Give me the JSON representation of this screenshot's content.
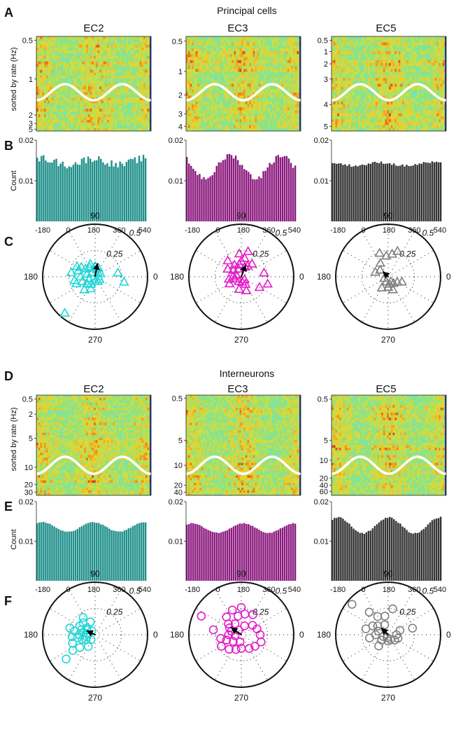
{
  "figure": {
    "sections": [
      {
        "key": "principal",
        "title": "Principal cells",
        "heat_panel_label": "A",
        "hist_panel_label": "B",
        "polar_panel_label": "C",
        "marker": "triangle"
      },
      {
        "key": "interneurons",
        "title": "Interneurons",
        "heat_panel_label": "D",
        "hist_panel_label": "E",
        "polar_panel_label": "F",
        "marker": "circle"
      }
    ],
    "columns": [
      "EC2",
      "EC3",
      "EC5"
    ],
    "column_colors": [
      "#1f8f8a",
      "#8b1a7e",
      "#333333"
    ],
    "polar_colors": [
      "#22d6d6",
      "#e21cc8",
      "#808080"
    ],
    "heatmap_ylabel": "sorted by rate (Hz)",
    "hist_ylabel": "Count",
    "polar_angle_labels": [
      "90",
      "180",
      "0",
      "270"
    ],
    "polar_radius_labels": [
      "0.5",
      "0.25"
    ]
  },
  "chart_data": [
    {
      "type": "heatmap",
      "panel": "A",
      "column": "EC2",
      "title": "EC2",
      "ylabel": "sorted by rate (Hz)",
      "yticks": [
        "0.5",
        "1",
        "2",
        "3",
        "5"
      ],
      "ytick_frac": [
        0.04,
        0.45,
        0.83,
        0.92,
        0.98
      ],
      "rows": 34,
      "bins": 60
    },
    {
      "type": "heatmap",
      "panel": "A",
      "column": "EC3",
      "title": "EC3",
      "yticks": [
        "0.5",
        "1",
        "2",
        "3",
        "4"
      ],
      "ytick_frac": [
        0.05,
        0.37,
        0.62,
        0.82,
        0.95
      ],
      "rows": 32,
      "bins": 60
    },
    {
      "type": "heatmap",
      "panel": "A",
      "column": "EC5",
      "title": "EC5",
      "yticks": [
        "0.5",
        "1",
        "2",
        "3",
        "4",
        "5"
      ],
      "ytick_frac": [
        0.04,
        0.16,
        0.29,
        0.45,
        0.72,
        0.95
      ],
      "rows": 32,
      "bins": 60
    },
    {
      "type": "bar",
      "panel": "B",
      "column": "EC2",
      "xticks": [
        "-180",
        "0",
        "180",
        "360",
        "540"
      ],
      "xlim": [
        -180,
        540
      ],
      "yticks": [
        "0.01",
        "0.02"
      ],
      "ylim": [
        0,
        0.02
      ],
      "ylabel": "Count",
      "bin_width": 15,
      "baseline": 0.0147,
      "amplitude": 0.0008,
      "peak_phase": 180,
      "noise": 0.0009
    },
    {
      "type": "bar",
      "panel": "B",
      "column": "EC3",
      "xticks": [
        "-180",
        "0",
        "180",
        "360",
        "540"
      ],
      "xlim": [
        -180,
        540
      ],
      "yticks": [
        "0.01",
        "0.02"
      ],
      "ylim": [
        0,
        0.02
      ],
      "bin_width": 15,
      "baseline": 0.0135,
      "amplitude": 0.0028,
      "peak_phase": 90,
      "noise": 0.0007
    },
    {
      "type": "bar",
      "panel": "B",
      "column": "EC5",
      "xticks": [
        "-180",
        "0",
        "180",
        "360",
        "540"
      ],
      "xlim": [
        -180,
        540
      ],
      "yticks": [
        "0.01",
        "0.02"
      ],
      "ylim": [
        0,
        0.02
      ],
      "bin_width": 15,
      "baseline": 0.0141,
      "amplitude": 0.0004,
      "peak_phase": 120,
      "noise": 0.0003
    },
    {
      "type": "scatter",
      "panel": "C",
      "column": "EC2",
      "marker": "triangle",
      "rmax": 0.5,
      "vector": {
        "angle": 80,
        "r": 0.13
      },
      "points": [
        [
          140,
          0.12
        ],
        [
          160,
          0.17
        ],
        [
          180,
          0.14
        ],
        [
          200,
          0.13
        ],
        [
          220,
          0.1
        ],
        [
          120,
          0.11
        ],
        [
          100,
          0.08
        ],
        [
          60,
          0.05
        ],
        [
          30,
          0.06
        ],
        [
          300,
          0.05
        ],
        [
          270,
          0.04
        ],
        [
          240,
          0.08
        ],
        [
          200,
          0.06
        ],
        [
          160,
          0.08
        ],
        [
          110,
          0.13
        ],
        [
          90,
          0.1
        ],
        [
          70,
          0.09
        ],
        [
          130,
          0.05
        ],
        [
          230,
          0.16
        ],
        [
          250,
          0.12
        ],
        [
          330,
          0.05
        ],
        [
          0,
          0.03
        ],
        [
          10,
          0.22
        ],
        [
          350,
          0.28
        ],
        [
          230,
          0.45
        ],
        [
          190,
          0.2
        ],
        [
          170,
          0.23
        ],
        [
          150,
          0.2
        ],
        [
          145,
          0.16
        ],
        [
          200,
          0.19
        ]
      ]
    },
    {
      "type": "scatter",
      "panel": "C",
      "column": "EC3",
      "marker": "triangle",
      "rmax": 0.5,
      "vector": {
        "angle": 70,
        "r": 0.12
      },
      "points": [
        [
          90,
          0.15
        ],
        [
          80,
          0.18
        ],
        [
          100,
          0.12
        ],
        [
          120,
          0.13
        ],
        [
          140,
          0.1
        ],
        [
          60,
          0.12
        ],
        [
          50,
          0.16
        ],
        [
          150,
          0.15
        ],
        [
          180,
          0.08
        ],
        [
          200,
          0.06
        ],
        [
          240,
          0.05
        ],
        [
          280,
          0.05
        ],
        [
          300,
          0.08
        ],
        [
          320,
          0.04
        ],
        [
          10,
          0.22
        ],
        [
          345,
          0.26
        ],
        [
          330,
          0.2
        ],
        [
          70,
          0.1
        ],
        [
          110,
          0.08
        ],
        [
          160,
          0.05
        ],
        [
          190,
          0.12
        ],
        [
          210,
          0.13
        ],
        [
          260,
          0.12
        ],
        [
          290,
          0.14
        ],
        [
          130,
          0.2
        ],
        [
          95,
          0.22
        ],
        [
          75,
          0.25
        ]
      ]
    },
    {
      "type": "scatter",
      "panel": "C",
      "column": "EC5",
      "marker": "triangle",
      "rmax": 0.5,
      "vector": {
        "angle": 135,
        "r": 0.07
      },
      "points": [
        [
          70,
          0.26
        ],
        [
          80,
          0.22
        ],
        [
          95,
          0.2
        ],
        [
          110,
          0.24
        ],
        [
          120,
          0.15
        ],
        [
          140,
          0.1
        ],
        [
          160,
          0.13
        ],
        [
          250,
          0.05
        ],
        [
          270,
          0.1
        ],
        [
          290,
          0.13
        ],
        [
          310,
          0.08
        ],
        [
          330,
          0.1
        ],
        [
          300,
          0.05
        ],
        [
          240,
          0.12
        ],
        [
          280,
          0.07
        ],
        [
          200,
          0.04
        ],
        [
          340,
          0.14
        ]
      ]
    },
    {
      "type": "heatmap",
      "panel": "D",
      "column": "EC2",
      "title": "EC2",
      "ylabel": "sorted by rate (Hz)",
      "yticks": [
        "0.5",
        "2",
        "5",
        "10",
        "20",
        "30"
      ],
      "ytick_frac": [
        0.04,
        0.19,
        0.43,
        0.72,
        0.89,
        0.97
      ],
      "rows": 40,
      "bins": 60
    },
    {
      "type": "heatmap",
      "panel": "D",
      "column": "EC3",
      "title": "EC3",
      "yticks": [
        "0.5",
        "5",
        "10",
        "20",
        "40"
      ],
      "ytick_frac": [
        0.03,
        0.45,
        0.7,
        0.9,
        0.97
      ],
      "rows": 40,
      "bins": 60
    },
    {
      "type": "heatmap",
      "panel": "D",
      "column": "EC5",
      "title": "EC5",
      "yticks": [
        "0.5",
        "5",
        "10",
        "20",
        "40",
        "60"
      ],
      "ytick_frac": [
        0.04,
        0.45,
        0.65,
        0.83,
        0.9,
        0.96
      ],
      "rows": 40,
      "bins": 60
    },
    {
      "type": "bar",
      "panel": "E",
      "column": "EC2",
      "xticks": [
        "-180",
        "0",
        "180",
        "360",
        "540"
      ],
      "xlim": [
        -180,
        540
      ],
      "yticks": [
        "0.01",
        "0.02"
      ],
      "ylim": [
        0,
        0.02
      ],
      "ylabel": "Count",
      "bin_width": 15,
      "baseline": 0.0136,
      "amplitude": 0.0012,
      "peak_phase": 180,
      "noise": 0.0001
    },
    {
      "type": "bar",
      "panel": "E",
      "column": "EC3",
      "xticks": [
        "-180",
        "0",
        "180",
        "360",
        "540"
      ],
      "xlim": [
        -180,
        540
      ],
      "yticks": [
        "0.01",
        "0.02"
      ],
      "ylim": [
        0,
        0.02
      ],
      "bin_width": 15,
      "baseline": 0.0133,
      "amplitude": 0.0012,
      "peak_phase": 180,
      "noise": 0.0001
    },
    {
      "type": "bar",
      "panel": "E",
      "column": "EC5",
      "xticks": [
        "-180",
        "0",
        "180",
        "360",
        "540"
      ],
      "xlim": [
        -180,
        540
      ],
      "yticks": [
        "0.01",
        "0.02"
      ],
      "ylim": [
        0,
        0.02
      ],
      "bin_width": 15,
      "baseline": 0.014,
      "amplitude": 0.002,
      "peak_phase": 180,
      "noise": 0.0002
    },
    {
      "type": "scatter",
      "panel": "F",
      "column": "EC2",
      "marker": "circle",
      "rmax": 0.5,
      "vector": {
        "angle": 155,
        "r": 0.09
      },
      "points": [
        [
          160,
          0.14
        ],
        [
          150,
          0.17
        ],
        [
          170,
          0.11
        ],
        [
          180,
          0.15
        ],
        [
          200,
          0.13
        ],
        [
          140,
          0.1
        ],
        [
          125,
          0.2
        ],
        [
          110,
          0.13
        ],
        [
          185,
          0.22
        ],
        [
          210,
          0.1
        ],
        [
          220,
          0.19
        ],
        [
          240,
          0.13
        ],
        [
          200,
          0.23
        ],
        [
          170,
          0.2
        ],
        [
          150,
          0.09
        ],
        [
          175,
          0.07
        ],
        [
          195,
          0.08
        ],
        [
          230,
          0.06
        ],
        [
          135,
          0.16
        ],
        [
          215,
          0.26
        ],
        [
          220,
          0.36
        ],
        [
          130,
          0.05
        ],
        [
          165,
          0.25
        ],
        [
          190,
          0.17
        ]
      ]
    },
    {
      "type": "scatter",
      "panel": "F",
      "column": "EC3",
      "marker": "circle",
      "rmax": 0.5,
      "vector": {
        "angle": 145,
        "r": 0.12
      },
      "points": [
        [
          150,
          0.13
        ],
        [
          140,
          0.16
        ],
        [
          160,
          0.1
        ],
        [
          180,
          0.12
        ],
        [
          200,
          0.15
        ],
        [
          120,
          0.12
        ],
        [
          100,
          0.18
        ],
        [
          80,
          0.2
        ],
        [
          60,
          0.22
        ],
        [
          90,
          0.26
        ],
        [
          110,
          0.25
        ],
        [
          130,
          0.22
        ],
        [
          170,
          0.27
        ],
        [
          190,
          0.2
        ],
        [
          210,
          0.22
        ],
        [
          230,
          0.18
        ],
        [
          250,
          0.15
        ],
        [
          270,
          0.13
        ],
        [
          300,
          0.15
        ],
        [
          320,
          0.17
        ],
        [
          340,
          0.2
        ],
        [
          0,
          0.18
        ],
        [
          20,
          0.16
        ],
        [
          40,
          0.14
        ],
        [
          155,
          0.42
        ],
        [
          220,
          0.1
        ],
        [
          260,
          0.07
        ],
        [
          190,
          0.06
        ],
        [
          120,
          0.05
        ],
        [
          70,
          0.09
        ]
      ]
    },
    {
      "type": "scatter",
      "panel": "F",
      "column": "EC5",
      "marker": "circle",
      "rmax": 0.5,
      "vector": {
        "angle": 135,
        "r": 0.09
      },
      "points": [
        [
          140,
          0.13
        ],
        [
          150,
          0.17
        ],
        [
          120,
          0.2
        ],
        [
          100,
          0.18
        ],
        [
          160,
          0.1
        ],
        [
          180,
          0.12
        ],
        [
          200,
          0.05
        ],
        [
          220,
          0.08
        ],
        [
          250,
          0.03
        ],
        [
          300,
          0.05
        ],
        [
          320,
          0.08
        ],
        [
          340,
          0.1
        ],
        [
          0,
          0.08
        ],
        [
          20,
          0.12
        ],
        [
          80,
          0.25
        ],
        [
          130,
          0.28
        ],
        [
          140,
          0.45
        ],
        [
          110,
          0.1
        ],
        [
          190,
          0.18
        ],
        [
          270,
          0.06
        ],
        [
          230,
          0.14
        ],
        [
          165,
          0.22
        ],
        [
          15,
          0.24
        ]
      ]
    }
  ]
}
